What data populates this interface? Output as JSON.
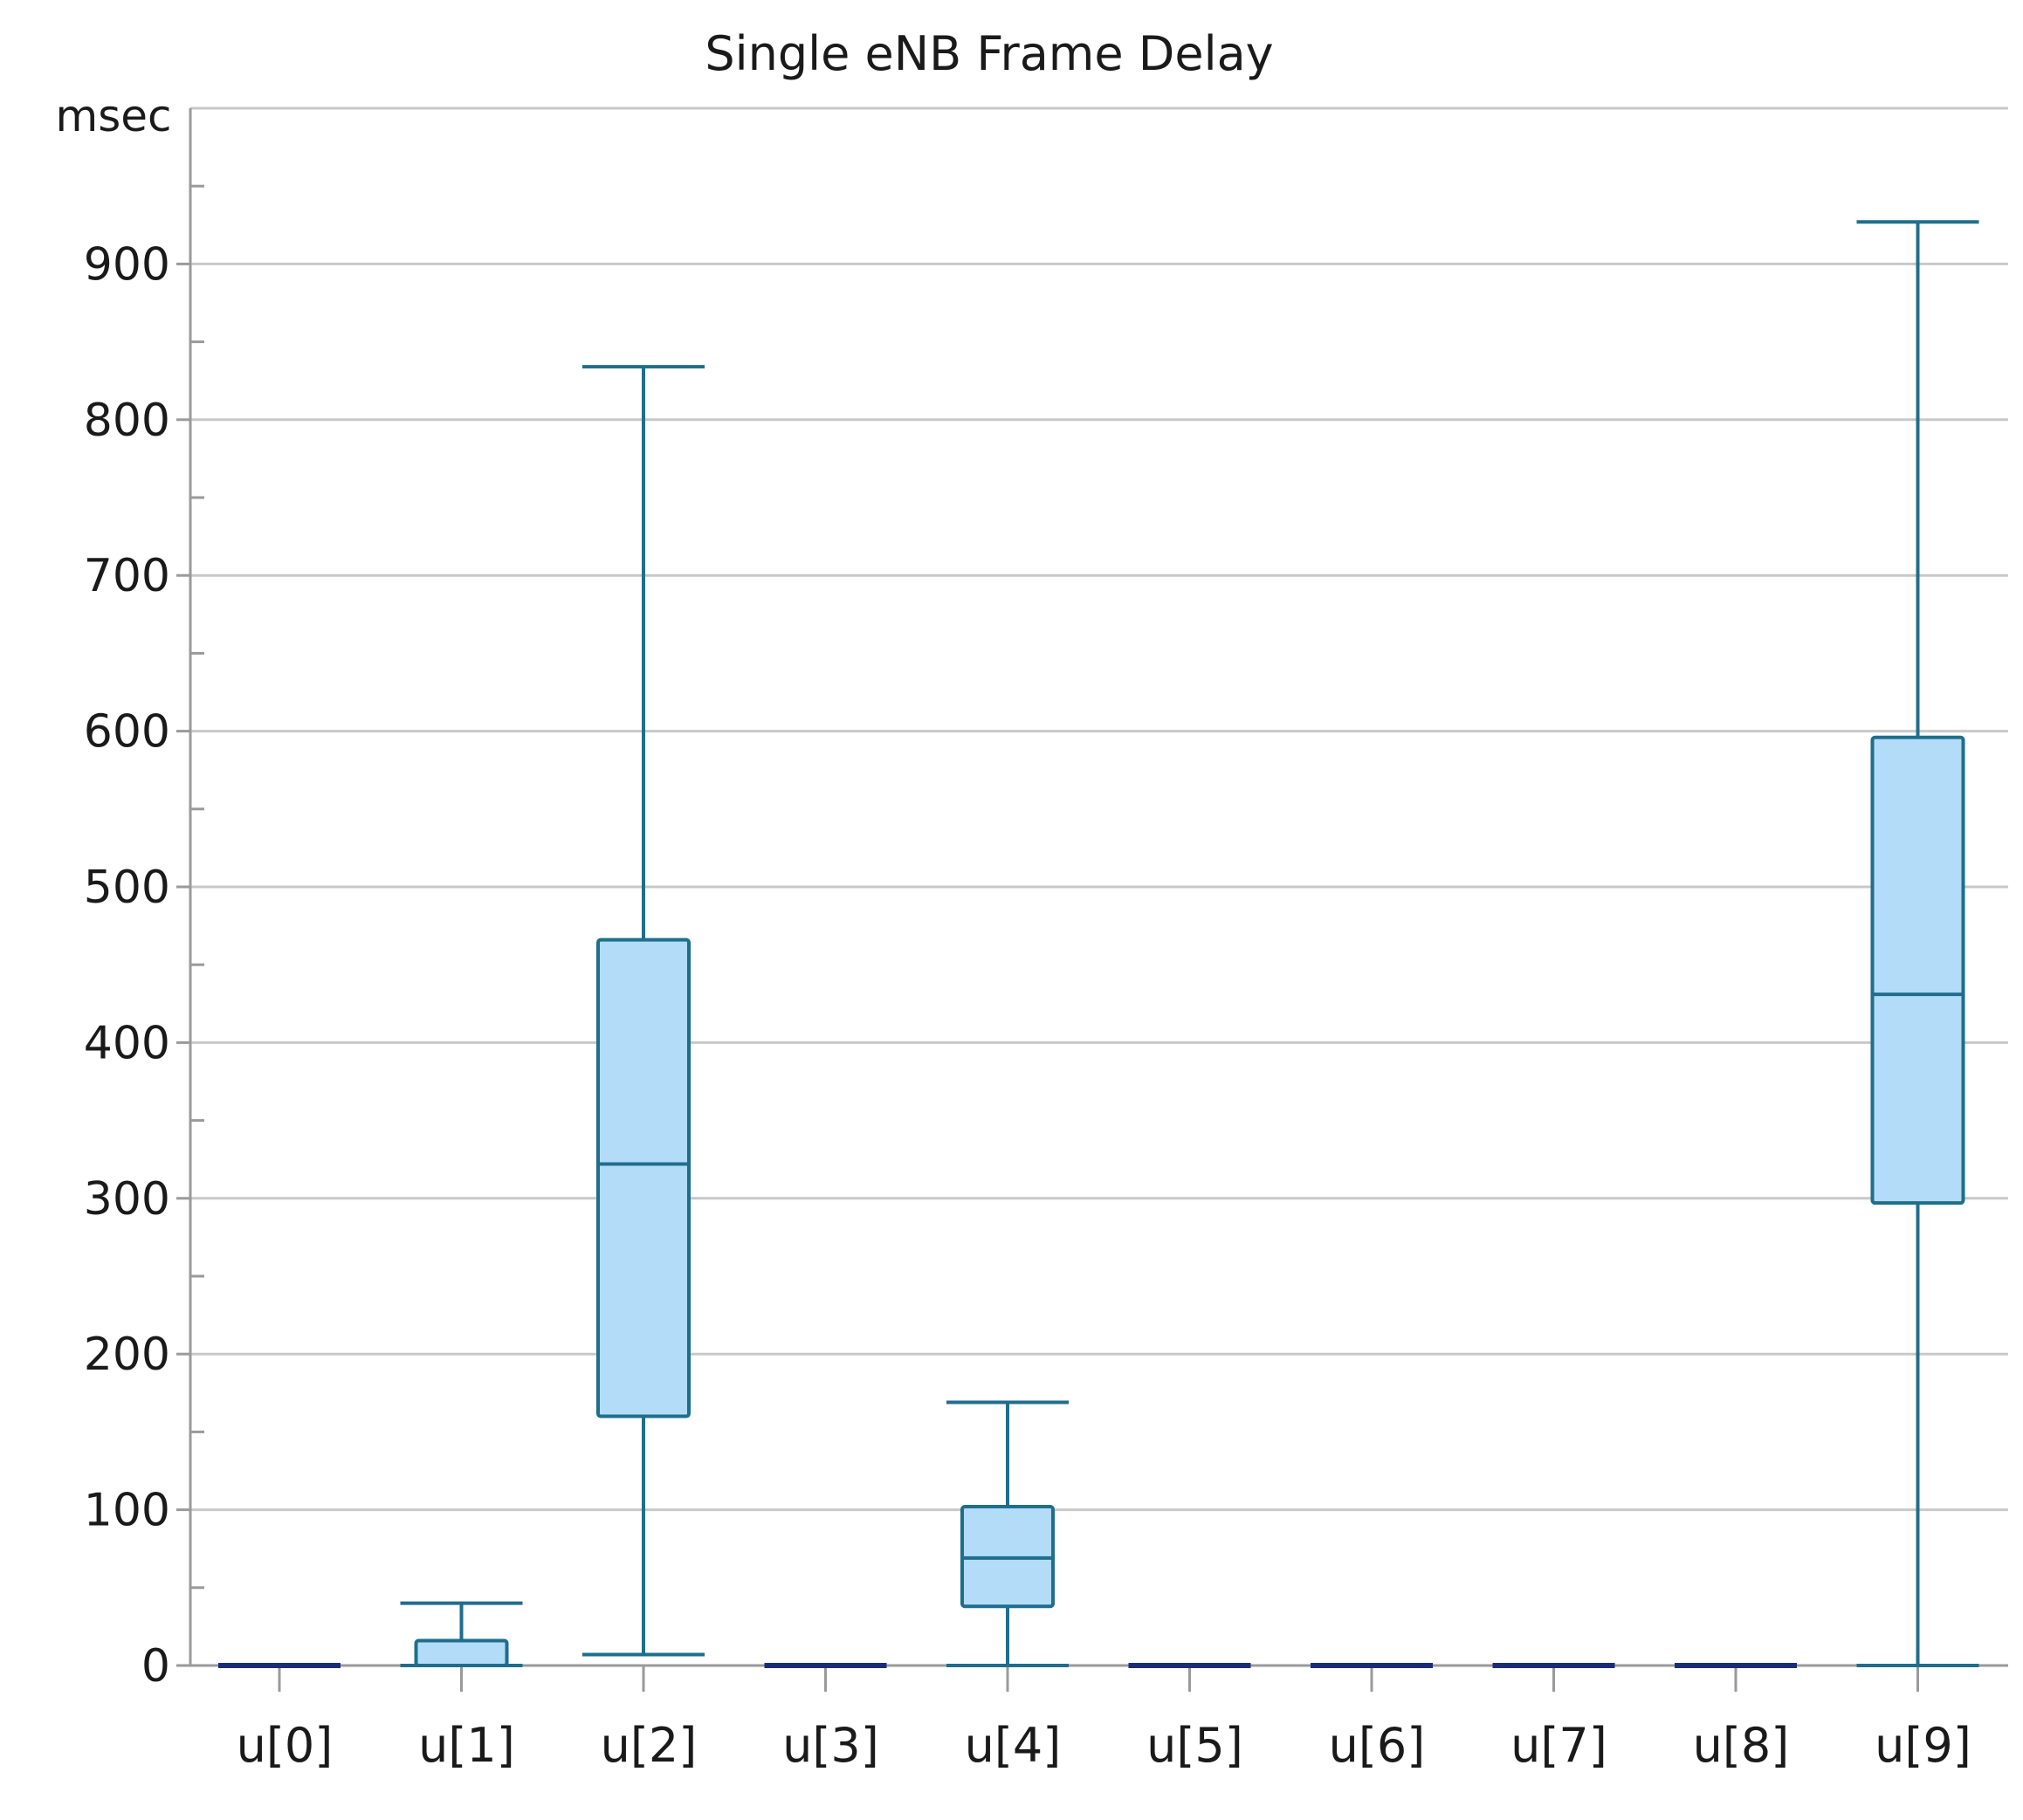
{
  "chart_data": {
    "type": "box",
    "title": "Single eNB Frame Delay",
    "ylabel": "msec",
    "xlabel": "",
    "ylim": [
      0,
      1000
    ],
    "yticks": [
      0,
      100,
      200,
      300,
      400,
      500,
      600,
      700,
      800,
      900
    ],
    "y_minor_step": 50,
    "grid": true,
    "legend": "none",
    "colors": {
      "box_fill": "#b3dcf9",
      "box_stroke": "#1f6e8c",
      "flat_line": "#1c2d78",
      "grid": "#c8c8c8",
      "axis": "#9a9a9a"
    },
    "categories": [
      "u[0]",
      "u[1]",
      "u[2]",
      "u[3]",
      "u[4]",
      "u[5]",
      "u[6]",
      "u[7]",
      "u[8]",
      "u[9]"
    ],
    "boxes": [
      {
        "min": 0,
        "q1": 0,
        "median": 0,
        "q3": 0,
        "max": 0
      },
      {
        "min": 0,
        "q1": 0,
        "median": 0,
        "q3": 16,
        "max": 40
      },
      {
        "min": 7,
        "q1": 160,
        "median": 322,
        "q3": 466,
        "max": 834
      },
      {
        "min": 0,
        "q1": 0,
        "median": 0,
        "q3": 0,
        "max": 0
      },
      {
        "min": 0,
        "q1": 38,
        "median": 69,
        "q3": 102,
        "max": 169
      },
      {
        "min": 0,
        "q1": 0,
        "median": 0,
        "q3": 0,
        "max": 0
      },
      {
        "min": 0,
        "q1": 0,
        "median": 0,
        "q3": 0,
        "max": 0
      },
      {
        "min": 0,
        "q1": 0,
        "median": 0,
        "q3": 0,
        "max": 0
      },
      {
        "min": 0,
        "q1": 0,
        "median": 0,
        "q3": 0,
        "max": 0
      },
      {
        "min": 0,
        "q1": 297,
        "median": 431,
        "q3": 596,
        "max": 927
      }
    ]
  }
}
